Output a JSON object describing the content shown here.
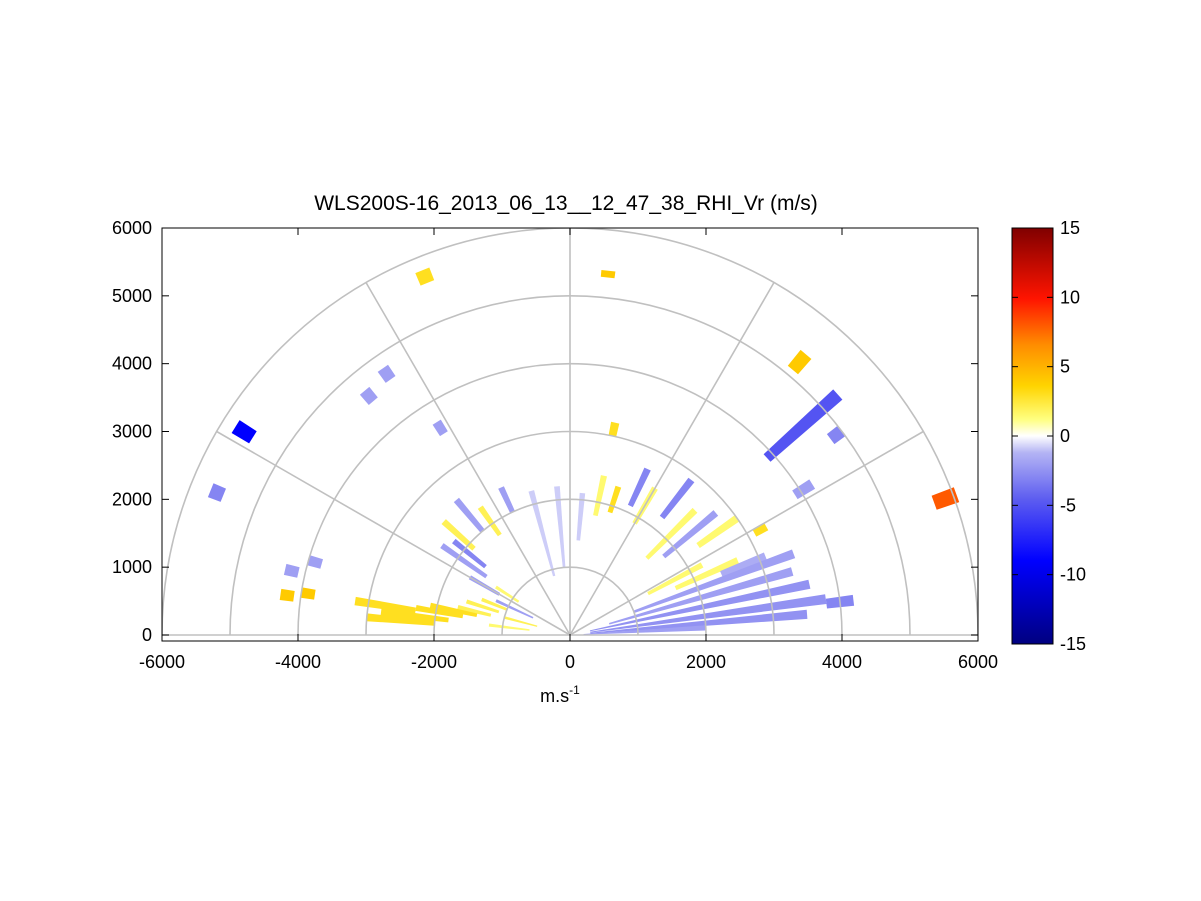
{
  "chart_data": {
    "type": "heatmap",
    "title": "WLS200S-16_2013_06_13__12_47_38_RHI_Vr (m/s)",
    "xlabel": "m.s",
    "xlabel_sup": "-1",
    "ylabel": "",
    "xlim": [
      -6000,
      6000
    ],
    "ylim": [
      0,
      6000
    ],
    "x_ticks": [
      -6000,
      -4000,
      -2000,
      0,
      2000,
      4000,
      6000
    ],
    "y_ticks": [
      0,
      1000,
      2000,
      3000,
      4000,
      5000,
      6000
    ],
    "grid": "polar",
    "polar_rings": [
      1000,
      2000,
      3000,
      4000,
      5000,
      6000
    ],
    "polar_spokes_deg": [
      0,
      30,
      60,
      90,
      120,
      150,
      180
    ],
    "colorbar": {
      "range": [
        -15,
        15
      ],
      "ticks": [
        15,
        10,
        5,
        0,
        -5,
        -10,
        -15
      ],
      "placement": "right"
    },
    "cells": [
      {
        "az": 158,
        "r0": 1000,
        "r1": 1400,
        "v": 2
      },
      {
        "az": 162,
        "r0": 1100,
        "r1": 1600,
        "v": 2
      },
      {
        "az": 166,
        "r0": 1200,
        "r1": 1700,
        "v": 2
      },
      {
        "az": 168,
        "r0": 1400,
        "r1": 2100,
        "v": 3
      },
      {
        "az": 170,
        "r0": 1600,
        "r1": 2300,
        "v": 3
      },
      {
        "az": 171,
        "r0": 2300,
        "r1": 3200,
        "v": 3
      },
      {
        "az": 173,
        "r0": 1800,
        "r1": 2800,
        "v": 3
      },
      {
        "az": 175,
        "r0": 2000,
        "r1": 3000,
        "v": 3
      },
      {
        "az": 173,
        "r0": 600,
        "r1": 1200,
        "v": 1.5
      },
      {
        "az": 165,
        "r0": 500,
        "r1": 1000,
        "v": 2
      },
      {
        "az": 155,
        "r0": 600,
        "r1": 1200,
        "v": -2
      },
      {
        "az": 150,
        "r0": 1200,
        "r1": 1700,
        "v": -2
      },
      {
        "az": 147,
        "r0": 900,
        "r1": 1300,
        "v": 1.5
      },
      {
        "az": 145,
        "r0": 1500,
        "r1": 2300,
        "v": -2
      },
      {
        "az": 141,
        "r0": 1600,
        "r1": 2200,
        "v": -3
      },
      {
        "az": 138,
        "r0": 1900,
        "r1": 2500,
        "v": 2
      },
      {
        "az": 130,
        "r0": 2000,
        "r1": 2600,
        "v": -2
      },
      {
        "az": 125,
        "r0": 1800,
        "r1": 2300,
        "v": 2
      },
      {
        "az": 115,
        "r0": 2000,
        "r1": 2400,
        "v": -2
      },
      {
        "az": 105,
        "r0": 900,
        "r1": 2200,
        "v": -0.8
      },
      {
        "az": 95,
        "r0": 1000,
        "r1": 2200,
        "v": -0.8
      },
      {
        "az": 85,
        "r0": 1400,
        "r1": 2100,
        "v": -0.8
      },
      {
        "az": 78,
        "r0": 1800,
        "r1": 2400,
        "v": 1.5
      },
      {
        "az": 72,
        "r0": 1900,
        "r1": 2300,
        "v": 3
      },
      {
        "az": 65,
        "r0": 2100,
        "r1": 2700,
        "v": -3
      },
      {
        "az": 60,
        "r0": 1900,
        "r1": 2500,
        "v": 1.5
      },
      {
        "az": 52,
        "r0": 2200,
        "r1": 2900,
        "v": -3
      },
      {
        "az": 45,
        "r0": 1600,
        "r1": 2600,
        "v": 1.5
      },
      {
        "az": 40,
        "r0": 1800,
        "r1": 2800,
        "v": -2
      },
      {
        "az": 35,
        "r0": 2300,
        "r1": 3000,
        "v": 1.5
      },
      {
        "az": 28,
        "r0": 1300,
        "r1": 2200,
        "v": 1.5
      },
      {
        "az": 24,
        "r0": 1700,
        "r1": 2700,
        "v": 1.5
      },
      {
        "az": 22,
        "r0": 2400,
        "r1": 3100,
        "v": -1.5
      },
      {
        "az": 20,
        "r0": 1000,
        "r1": 3500,
        "v": -2
      },
      {
        "az": 16,
        "r0": 600,
        "r1": 3400,
        "v": -2
      },
      {
        "az": 12,
        "r0": 300,
        "r1": 3600,
        "v": -2.5
      },
      {
        "az": 8,
        "r0": 300,
        "r1": 3800,
        "v": -2.5
      },
      {
        "az": 5,
        "r0": 300,
        "r1": 3500,
        "v": -2.5
      },
      {
        "az": 3,
        "r0": 200,
        "r1": 2000,
        "v": -2
      },
      {
        "az": 7,
        "r0": 3800,
        "r1": 4200,
        "v": -3
      },
      {
        "az": 29,
        "r0": 3100,
        "r1": 3300,
        "v": 3
      },
      {
        "az": 32,
        "r0": 3900,
        "r1": 4200,
        "v": -2
      },
      {
        "az": 37,
        "r0": 4800,
        "r1": 5000,
        "v": -3
      },
      {
        "az": 42,
        "r0": 3900,
        "r1": 5300,
        "v": -5
      },
      {
        "az": 50,
        "r0": 5100,
        "r1": 5400,
        "v": 4
      },
      {
        "az": 20,
        "r0": 5700,
        "r1": 6050,
        "v": 8
      },
      {
        "az": 78,
        "r0": 3000,
        "r1": 3200,
        "v": 3
      },
      {
        "az": 84,
        "r0": 5300,
        "r1": 5400,
        "v": 4
      },
      {
        "az": 122,
        "r0": 3500,
        "r1": 3700,
        "v": -2
      },
      {
        "az": 125,
        "r0": 4600,
        "r1": 4800,
        "v": -2
      },
      {
        "az": 130,
        "r0": 4500,
        "r1": 4700,
        "v": -2
      },
      {
        "az": 112,
        "r0": 5600,
        "r1": 5800,
        "v": 3
      },
      {
        "az": 148,
        "r0": 5500,
        "r1": 5800,
        "v": -9
      },
      {
        "az": 158,
        "r0": 5500,
        "r1": 5700,
        "v": -3
      },
      {
        "az": 167,
        "r0": 4100,
        "r1": 4300,
        "v": -2
      },
      {
        "az": 172,
        "r0": 4100,
        "r1": 4300,
        "v": 4
      },
      {
        "az": 171,
        "r0": 3800,
        "r1": 4000,
        "v": 4
      },
      {
        "az": 164,
        "r0": 3800,
        "r1": 4000,
        "v": -2
      }
    ]
  }
}
